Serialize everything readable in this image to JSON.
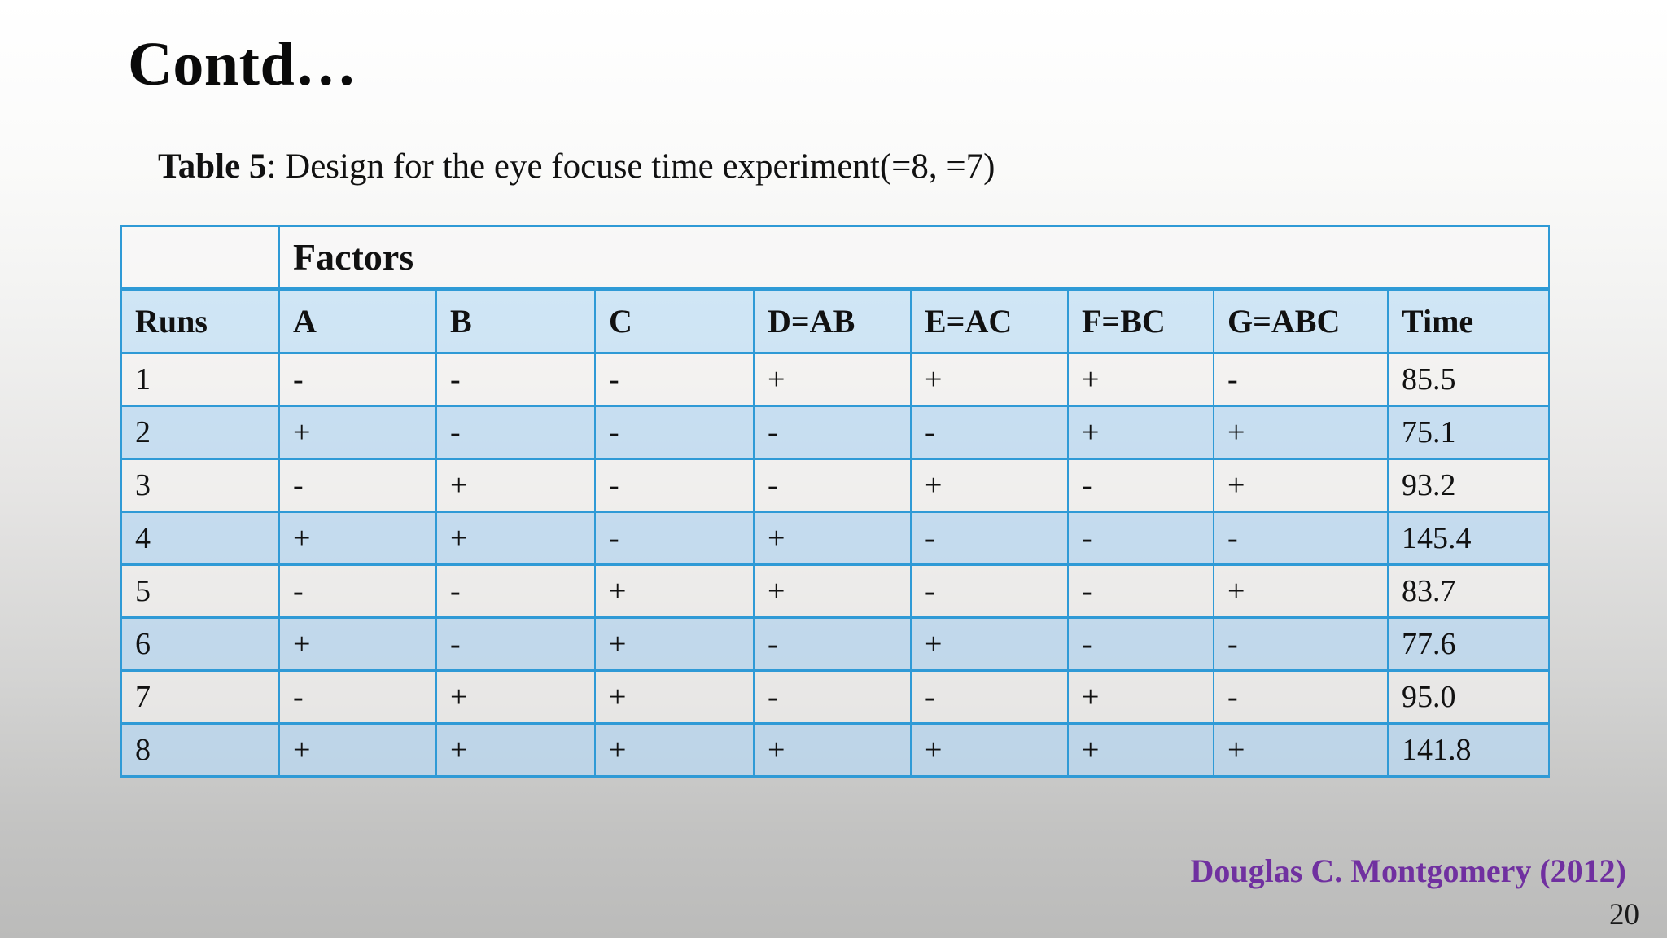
{
  "slide": {
    "title": "Contd…",
    "caption_label": "Table 5",
    "caption_text": ": Design for the eye focuse time experiment(=8, =7)",
    "attribution": "Douglas C. Montgomery (2012)",
    "page_number": "20"
  },
  "table": {
    "factors_header": "Factors",
    "columns": [
      "Runs",
      "A",
      "B",
      "C",
      "D=AB",
      "E=AC",
      "F=BC",
      "G=ABC",
      "Time"
    ],
    "rows": [
      [
        "1",
        "-",
        "-",
        "-",
        "+",
        "+",
        "+",
        "-",
        "85.5"
      ],
      [
        "2",
        "+",
        "-",
        "-",
        "-",
        "-",
        "+",
        "+",
        "75.1"
      ],
      [
        "3",
        "-",
        "+",
        "-",
        "-",
        "+",
        "-",
        "+",
        "93.2"
      ],
      [
        "4",
        "+",
        "+",
        "-",
        "+",
        "-",
        "-",
        "-",
        "145.4"
      ],
      [
        "5",
        "-",
        "-",
        "+",
        "+",
        "-",
        "-",
        "+",
        "83.7"
      ],
      [
        "6",
        "+",
        "-",
        "+",
        "-",
        "+",
        "-",
        "-",
        "77.6"
      ],
      [
        "7",
        "-",
        "+",
        "+",
        "-",
        "-",
        "+",
        "-",
        "95.0"
      ],
      [
        "8",
        "+",
        "+",
        "+",
        "+",
        "+",
        "+",
        "+",
        "141.8"
      ]
    ]
  },
  "colors": {
    "table_border_blue": "#2f9ad6",
    "header_fill_blue": "#cfe4f4",
    "even_row_blue": "#c9e0f2",
    "accent_purple": "#7030a0"
  }
}
